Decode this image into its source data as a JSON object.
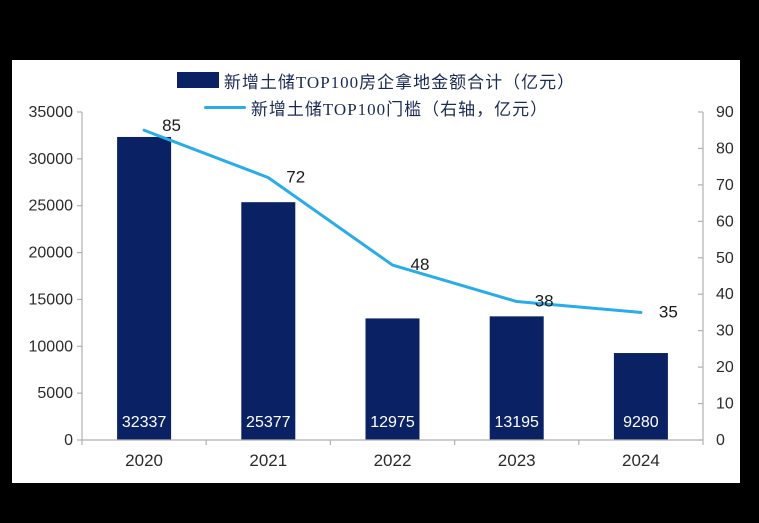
{
  "page": {
    "background_color": "#000000",
    "panel_color": "#ffffff"
  },
  "legend": {
    "items": [
      {
        "label": "新增土储TOP100房企拿地金额合计（亿元）",
        "swatch": "bar-swatch",
        "color": "#0a2263"
      },
      {
        "label": "新增土储TOP100门槛（右轴，亿元）",
        "swatch": "line-swatch",
        "color": "#29ace8"
      }
    ]
  },
  "chart_data": {
    "type": "combo",
    "categories": [
      "2020",
      "2021",
      "2022",
      "2023",
      "2024"
    ],
    "series": [
      {
        "name": "新增土储TOP100房企拿地金额合计（亿元）",
        "type": "bar",
        "axis": "left",
        "color": "#0a2263",
        "values": [
          32337,
          25377,
          12975,
          13195,
          9280
        ],
        "value_label_color": "#ffffff"
      },
      {
        "name": "新增土储TOP100门槛（右轴，亿元）",
        "type": "line",
        "axis": "right",
        "color": "#29ace8",
        "values": [
          85,
          72,
          48,
          38,
          35
        ],
        "value_label_color": "#1a1a1a"
      }
    ],
    "left_axis": {
      "min": 0,
      "max": 35000,
      "step": 5000,
      "ticks": [
        0,
        5000,
        10000,
        15000,
        20000,
        25000,
        30000,
        35000
      ]
    },
    "right_axis": {
      "min": 0,
      "max": 90,
      "step": 10,
      "ticks": [
        0,
        10,
        20,
        30,
        40,
        50,
        60,
        70,
        80,
        90
      ]
    },
    "grid": false,
    "legend_position": "top",
    "axis_line_color": "#b0b0b0",
    "tick_label_color": "#2b2b2b"
  }
}
